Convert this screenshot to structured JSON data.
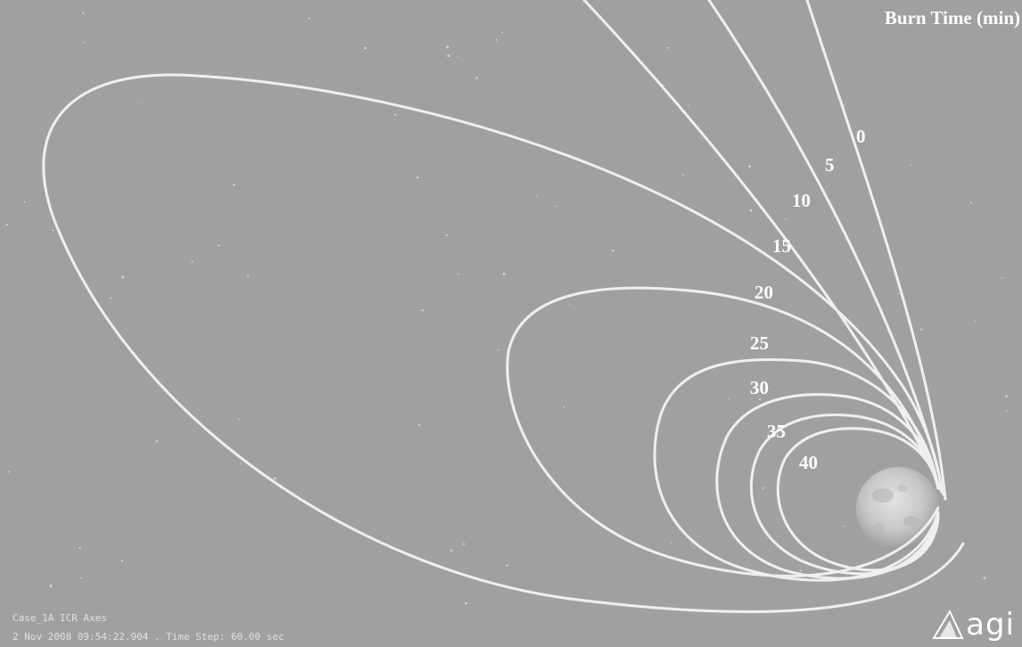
{
  "legend": {
    "title": "Burn Time (min)"
  },
  "burn_times": [
    "0",
    "5",
    "10",
    "15",
    "20",
    "25",
    "30",
    "35",
    "40"
  ],
  "hud": {
    "line1": "Case_1A ICR Axes",
    "line2": "2 Nov 2008 09:54:22.904 . Time Step: 60.00 sec"
  },
  "logo": {
    "text": "agi"
  },
  "colors": {
    "background": "#a0a0a0",
    "trajectory": "#efefef",
    "label": "#ffffff"
  }
}
